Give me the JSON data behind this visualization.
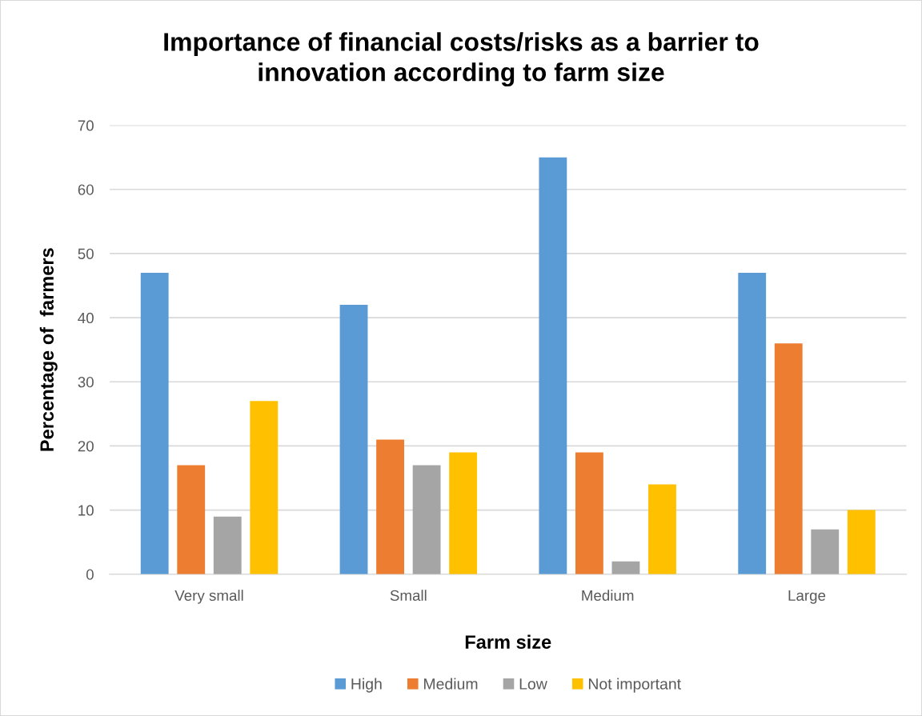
{
  "chart_data": {
    "type": "bar",
    "title": "Importance of financial costs/risks as a barrier to\ninnovation according to farm size",
    "xlabel": "Farm size",
    "ylabel": "Percentage of  farmers",
    "categories": [
      "Very small",
      "Small",
      "Medium",
      "Large"
    ],
    "series": [
      {
        "name": "High",
        "color": "#5b9bd5",
        "values": [
          47,
          42,
          65,
          47
        ]
      },
      {
        "name": "Medium",
        "color": "#ed7d31",
        "values": [
          17,
          21,
          19,
          36
        ]
      },
      {
        "name": "Low",
        "color": "#a5a5a5",
        "values": [
          9,
          17,
          2,
          7
        ]
      },
      {
        "name": "Not important",
        "color": "#ffc000",
        "values": [
          27,
          19,
          14,
          10
        ]
      }
    ],
    "ylim": [
      0,
      70
    ],
    "yticks": [
      0,
      10,
      20,
      30,
      40,
      50,
      60,
      70
    ],
    "grid": "y",
    "legend": "bottom"
  }
}
